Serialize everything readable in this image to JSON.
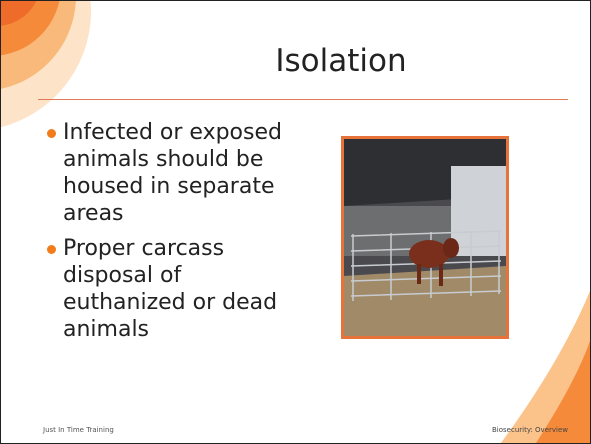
{
  "title": "Isolation",
  "bullets": [
    "Infected or exposed animals should be housed in separate areas",
    "Proper carcass disposal of euthanized or dead animals"
  ],
  "footer": {
    "left": "Just In Time Training",
    "right": "Biosecurity: Overview"
  }
}
